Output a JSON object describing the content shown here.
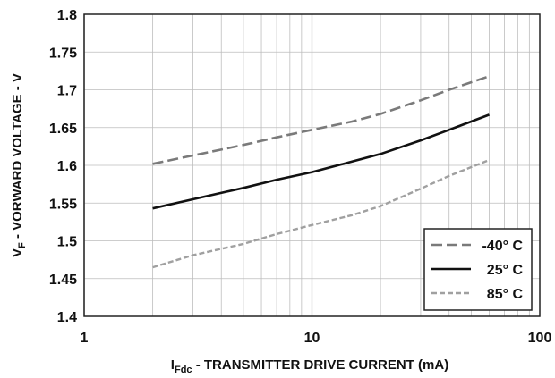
{
  "chart_data": {
    "type": "line",
    "x_scale": "log",
    "xlim": [
      1,
      100
    ],
    "ylim": [
      1.4,
      1.8
    ],
    "x_ticks": [
      1,
      10,
      100
    ],
    "x_tick_labels": [
      "1",
      "10",
      "100"
    ],
    "y_ticks": [
      1.4,
      1.45,
      1.5,
      1.55,
      1.6,
      1.65,
      1.7,
      1.75,
      1.8
    ],
    "y_tick_labels": [
      "1.4",
      "1.45",
      "1.5",
      "1.55",
      "1.6",
      "1.65",
      "1.7",
      "1.75",
      "1.8"
    ],
    "grid": true,
    "legend_position": "bottom-right",
    "xlabel": {
      "prefix": "I",
      "sub": "Fdc",
      "rest": " - TRANSMITTER DRIVE CURRENT (mA)"
    },
    "ylabel": {
      "prefix": "V",
      "sub": "F",
      "rest": " - VORWARD VOLTAGE - V"
    },
    "series": [
      {
        "name": "-40° C",
        "color": "#7a7a7a",
        "dash": "dashed-long",
        "x": [
          2,
          3,
          5,
          7,
          10,
          15,
          20,
          30,
          40,
          60
        ],
        "y": [
          1.602,
          1.613,
          1.627,
          1.637,
          1.647,
          1.658,
          1.668,
          1.686,
          1.7,
          1.718
        ]
      },
      {
        "name": "25° C",
        "color": "#111111",
        "dash": "solid",
        "x": [
          2,
          3,
          5,
          7,
          10,
          15,
          20,
          30,
          40,
          60
        ],
        "y": [
          1.543,
          1.555,
          1.57,
          1.581,
          1.591,
          1.605,
          1.615,
          1.633,
          1.647,
          1.667
        ]
      },
      {
        "name": "85° C",
        "color": "#a0a0a0",
        "dash": "dashed-short",
        "x": [
          2,
          3,
          5,
          7,
          10,
          15,
          20,
          30,
          40,
          60
        ],
        "y": [
          1.465,
          1.481,
          1.496,
          1.509,
          1.521,
          1.534,
          1.546,
          1.569,
          1.586,
          1.607
        ]
      }
    ]
  }
}
